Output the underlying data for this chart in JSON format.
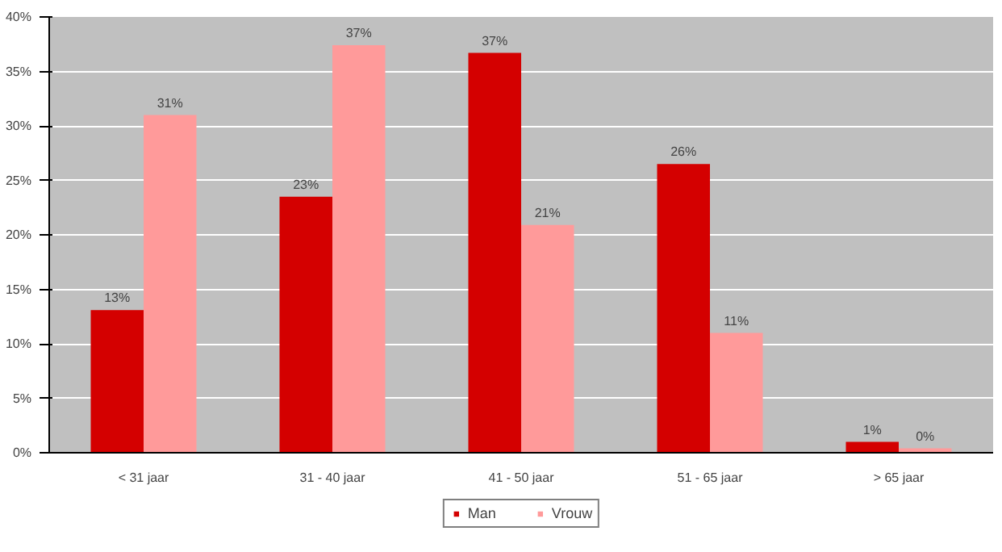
{
  "chart_data": {
    "type": "bar",
    "categories": [
      "< 31 jaar",
      "31 - 40 jaar",
      "41 - 50 jaar",
      "51 - 65 jaar",
      "> 65 jaar"
    ],
    "series": [
      {
        "name": "Man",
        "color": "#d40000",
        "values": [
          13.1,
          23.5,
          36.7,
          26.5,
          1.0
        ],
        "value_labels": [
          "13%",
          "23%",
          "37%",
          "26%",
          "1%"
        ]
      },
      {
        "name": "Vrouw",
        "color": "#ff9a9a",
        "values": [
          31.0,
          37.4,
          20.9,
          11.0,
          0.4
        ],
        "value_labels": [
          "31%",
          "37%",
          "21%",
          "11%",
          "0%"
        ]
      }
    ],
    "ylim": [
      0,
      40
    ],
    "yticks": [
      {
        "value": 0,
        "label": "0%"
      },
      {
        "value": 5,
        "label": "5%"
      },
      {
        "value": 10,
        "label": "10%"
      },
      {
        "value": 15,
        "label": "15%"
      },
      {
        "value": 20,
        "label": "20%"
      },
      {
        "value": 25,
        "label": "25%"
      },
      {
        "value": 30,
        "label": "30%"
      },
      {
        "value": 35,
        "label": "35%"
      },
      {
        "value": 40,
        "label": "40%"
      }
    ],
    "grid": "y",
    "legend": "bottom"
  }
}
